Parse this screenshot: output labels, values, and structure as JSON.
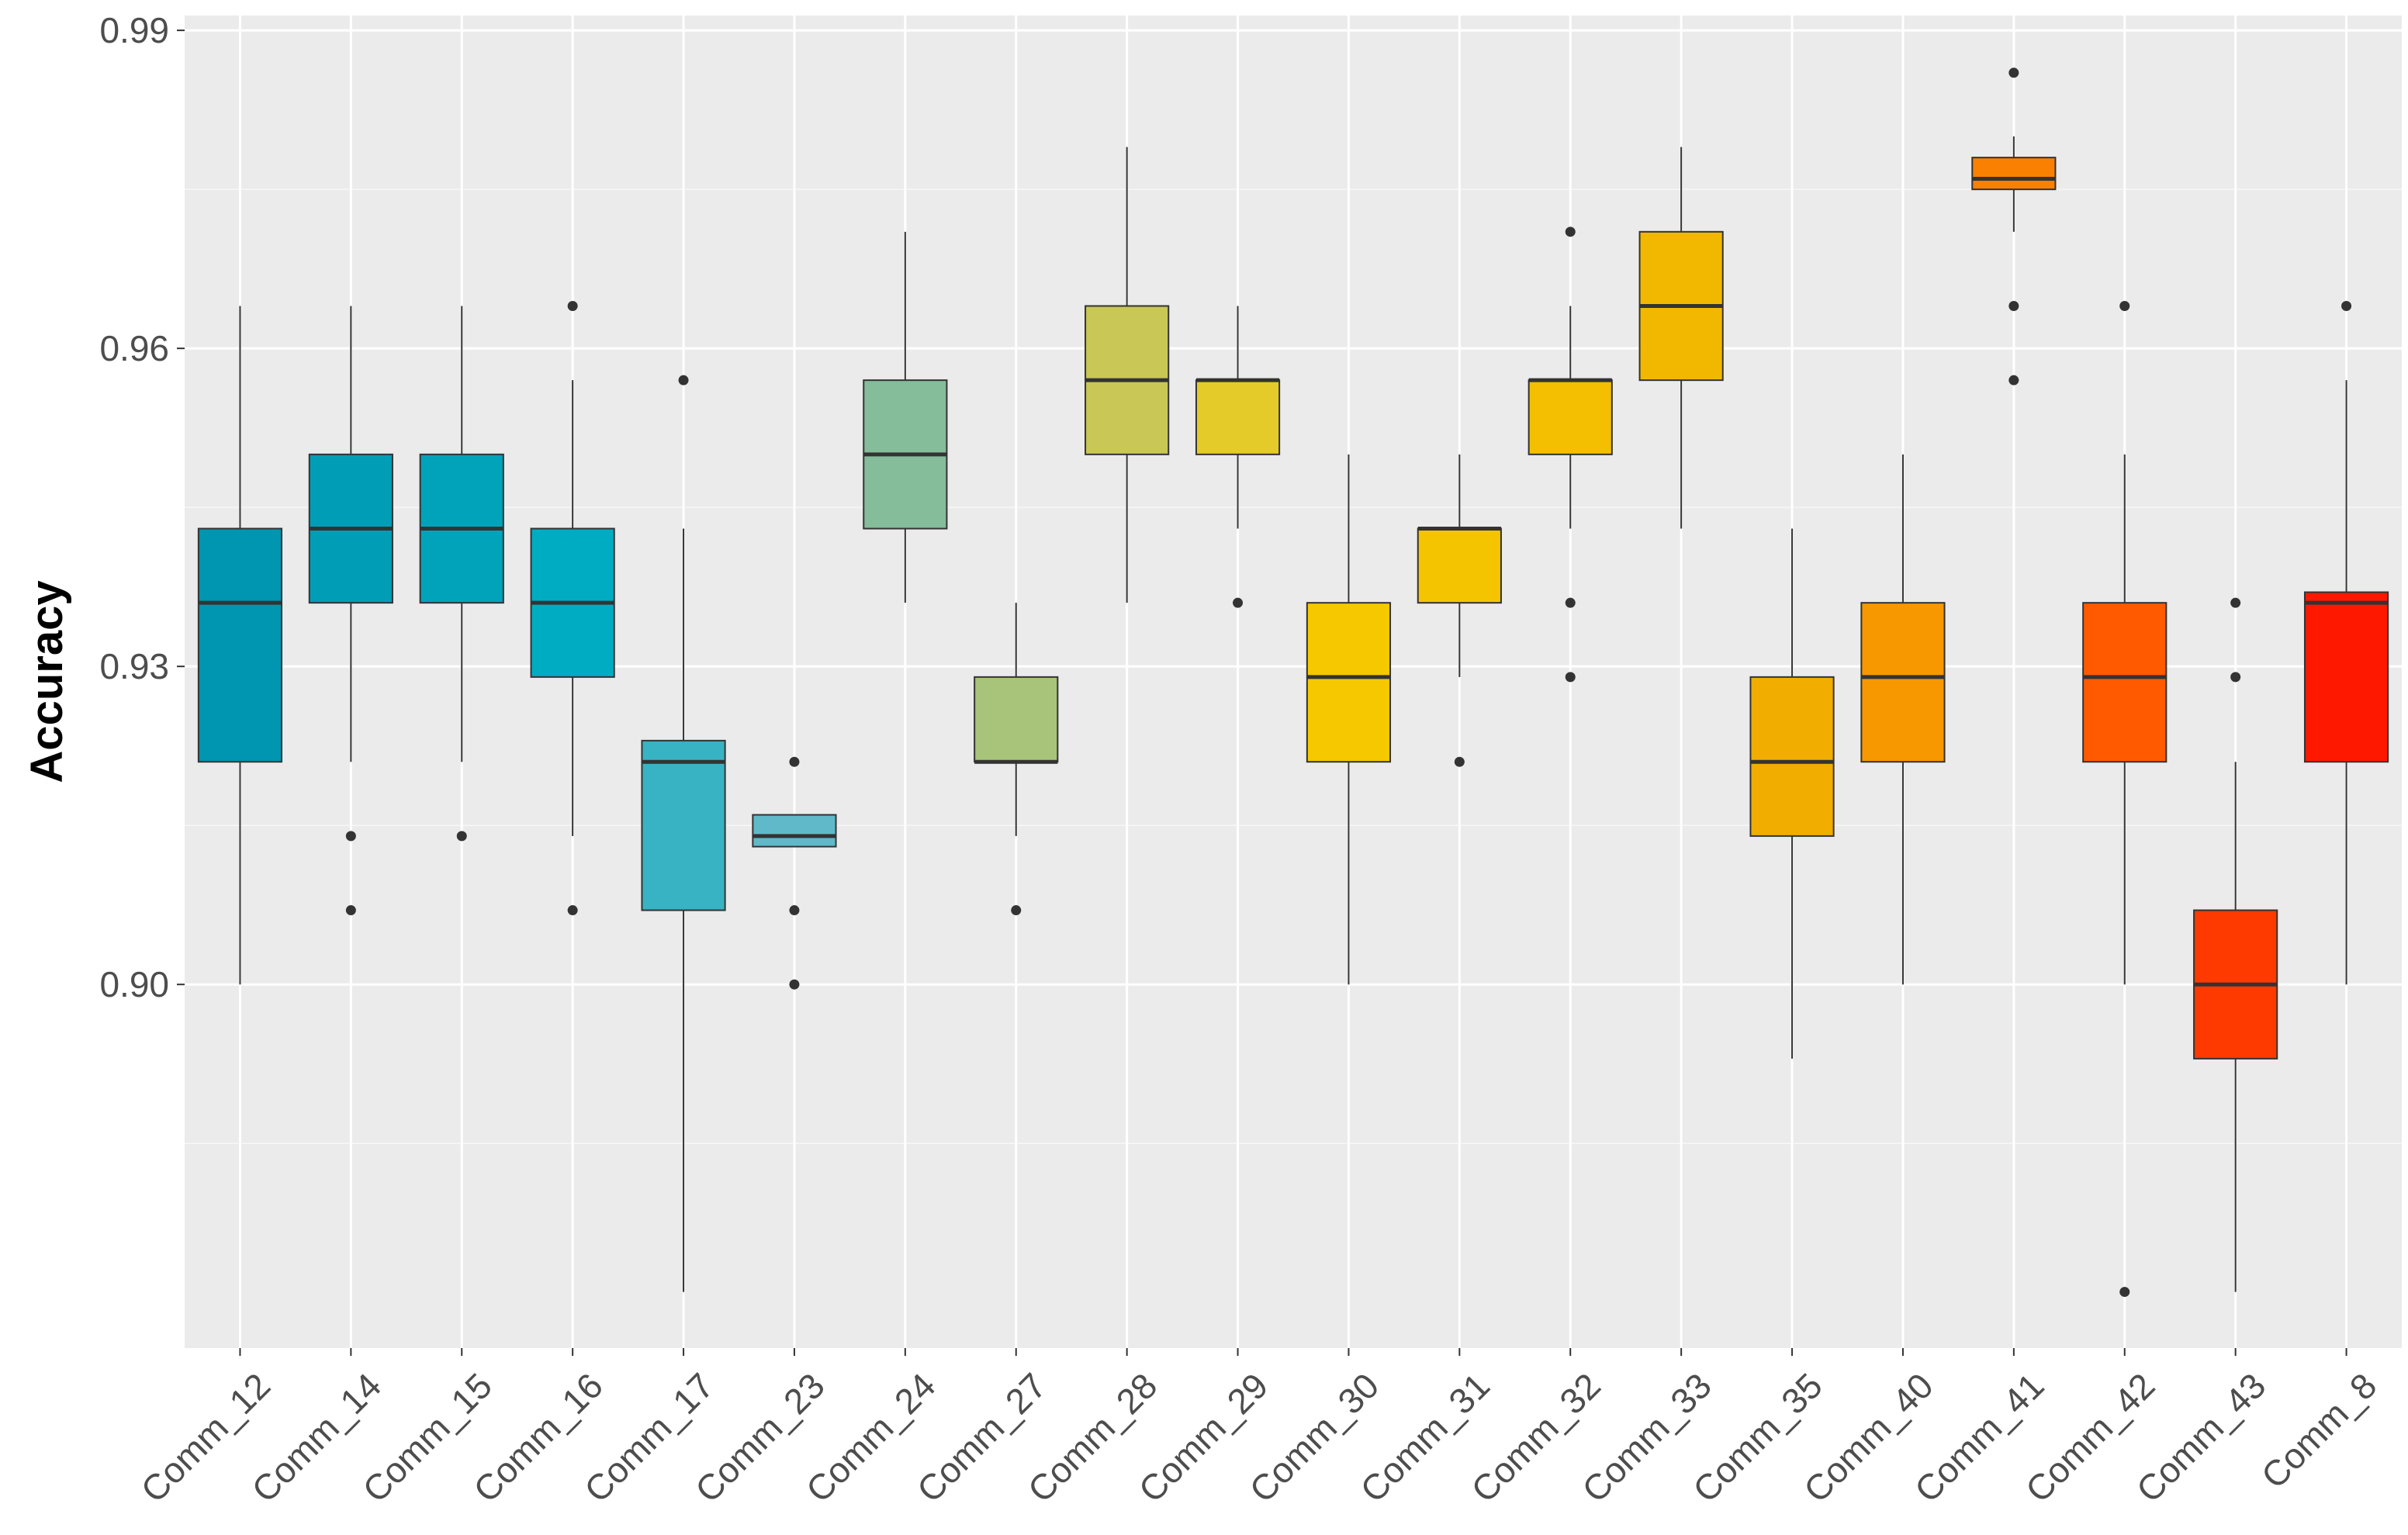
{
  "chart_data": {
    "type": "boxplot",
    "title": "",
    "xlabel": "",
    "ylabel": "Accuracy",
    "ylim": [
      0.8657,
      0.9914
    ],
    "y_ticks": [
      0.9,
      0.93,
      0.96,
      0.99
    ],
    "y_tick_labels": [
      "0.90",
      "0.93",
      "0.96",
      "0.99"
    ],
    "y_minor_ticks": [
      0.885,
      0.915,
      0.945,
      0.975
    ],
    "grid": true,
    "legend": "none",
    "background": "#ebebeb",
    "categories": [
      "Comm_12",
      "Comm_14",
      "Comm_15",
      "Comm_16",
      "Comm_17",
      "Comm_23",
      "Comm_24",
      "Comm_27",
      "Comm_28",
      "Comm_29",
      "Comm_30",
      "Comm_31",
      "Comm_32",
      "Comm_33",
      "Comm_35",
      "Comm_40",
      "Comm_41",
      "Comm_42",
      "Comm_43",
      "Comm_8"
    ],
    "boxes": [
      {
        "category": "Comm_12",
        "whisker_low": 0.9,
        "q1": 0.921,
        "median": 0.936,
        "q3": 0.943,
        "whisker_high": 0.964,
        "outliers": [],
        "color": "#0095b0"
      },
      {
        "category": "Comm_14",
        "whisker_low": 0.921,
        "q1": 0.936,
        "median": 0.943,
        "q3": 0.95,
        "whisker_high": 0.964,
        "outliers": [
          0.914,
          0.907
        ],
        "color": "#009db6"
      },
      {
        "category": "Comm_15",
        "whisker_low": 0.921,
        "q1": 0.936,
        "median": 0.943,
        "q3": 0.95,
        "whisker_high": 0.964,
        "outliers": [
          0.914
        ],
        "color": "#00a3ba"
      },
      {
        "category": "Comm_16",
        "whisker_low": 0.914,
        "q1": 0.929,
        "median": 0.936,
        "q3": 0.943,
        "whisker_high": 0.957,
        "outliers": [
          0.964,
          0.907
        ],
        "color": "#00acc2"
      },
      {
        "category": "Comm_17",
        "whisker_low": 0.871,
        "q1": 0.907,
        "median": 0.921,
        "q3": 0.923,
        "whisker_high": 0.943,
        "outliers": [
          0.957
        ],
        "color": "#38b3c4"
      },
      {
        "category": "Comm_23",
        "whisker_low": 0.913,
        "q1": 0.913,
        "median": 0.914,
        "q3": 0.916,
        "whisker_high": 0.916,
        "outliers": [
          0.921,
          0.907,
          0.9
        ],
        "color": "#5fb9c9"
      },
      {
        "category": "Comm_24",
        "whisker_low": 0.936,
        "q1": 0.943,
        "median": 0.95,
        "q3": 0.957,
        "whisker_high": 0.971,
        "outliers": [],
        "color": "#85bd9b"
      },
      {
        "category": "Comm_27",
        "whisker_low": 0.914,
        "q1": 0.921,
        "median": 0.921,
        "q3": 0.929,
        "whisker_high": 0.936,
        "outliers": [
          0.907
        ],
        "color": "#a8c47a"
      },
      {
        "category": "Comm_28",
        "whisker_low": 0.936,
        "q1": 0.95,
        "median": 0.957,
        "q3": 0.964,
        "whisker_high": 0.979,
        "outliers": [],
        "color": "#c9c756"
      },
      {
        "category": "Comm_29",
        "whisker_low": 0.943,
        "q1": 0.95,
        "median": 0.957,
        "q3": 0.957,
        "whisker_high": 0.964,
        "outliers": [
          0.936
        ],
        "color": "#e5cb29"
      },
      {
        "category": "Comm_30",
        "whisker_low": 0.9,
        "q1": 0.921,
        "median": 0.929,
        "q3": 0.936,
        "whisker_high": 0.95,
        "outliers": [],
        "color": "#f5c800"
      },
      {
        "category": "Comm_31",
        "whisker_low": 0.929,
        "q1": 0.936,
        "median": 0.943,
        "q3": 0.943,
        "whisker_high": 0.95,
        "outliers": [
          0.921
        ],
        "color": "#f5c400"
      },
      {
        "category": "Comm_32",
        "whisker_low": 0.943,
        "q1": 0.95,
        "median": 0.957,
        "q3": 0.957,
        "whisker_high": 0.964,
        "outliers": [
          0.971,
          0.936,
          0.929
        ],
        "color": "#f3bf00"
      },
      {
        "category": "Comm_33",
        "whisker_low": 0.943,
        "q1": 0.957,
        "median": 0.964,
        "q3": 0.971,
        "whisker_high": 0.979,
        "outliers": [],
        "color": "#f2b800"
      },
      {
        "category": "Comm_35",
        "whisker_low": 0.893,
        "q1": 0.914,
        "median": 0.921,
        "q3": 0.929,
        "whisker_high": 0.943,
        "outliers": [],
        "color": "#f1ad00"
      },
      {
        "category": "Comm_40",
        "whisker_low": 0.9,
        "q1": 0.921,
        "median": 0.929,
        "q3": 0.936,
        "whisker_high": 0.95,
        "outliers": [],
        "color": "#f79800"
      },
      {
        "category": "Comm_41",
        "whisker_low": 0.971,
        "q1": 0.975,
        "median": 0.976,
        "q3": 0.978,
        "whisker_high": 0.98,
        "outliers": [
          0.986,
          0.964,
          0.957
        ],
        "color": "#f98000"
      },
      {
        "category": "Comm_42",
        "whisker_low": 0.9,
        "q1": 0.921,
        "median": 0.929,
        "q3": 0.936,
        "whisker_high": 0.95,
        "outliers": [
          0.964,
          0.871
        ],
        "color": "#ff5a00"
      },
      {
        "category": "Comm_43",
        "whisker_low": 0.871,
        "q1": 0.893,
        "median": 0.9,
        "q3": 0.907,
        "whisker_high": 0.921,
        "outliers": [
          0.936,
          0.929
        ],
        "color": "#ff3a00"
      },
      {
        "category": "Comm_8",
        "whisker_low": 0.9,
        "q1": 0.921,
        "median": 0.936,
        "q3": 0.937,
        "whisker_high": 0.957,
        "outliers": [
          0.964
        ],
        "color": "#ff1800"
      }
    ]
  }
}
